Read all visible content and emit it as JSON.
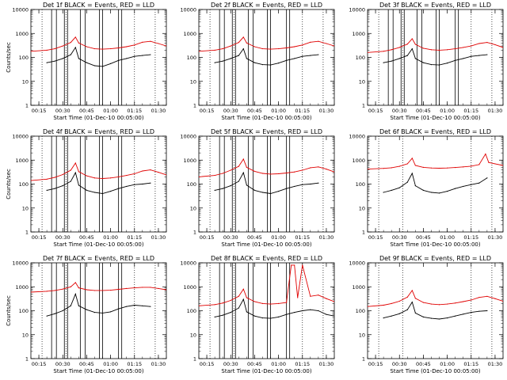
{
  "colors": {
    "events": "#000000",
    "lld": "#e00000",
    "background": "#ffffff"
  },
  "chart_data": [
    {
      "type": "line",
      "title": "Det 1f BLACK = Events, RED = LLD",
      "xlabel": "Start Time (01-Dec-10 00:05:00)",
      "ylabel": "Counts/sec",
      "x_ticks": [
        "00:15",
        "00:30",
        "00:45",
        "01:00",
        "01:15",
        "01:30"
      ],
      "y_ticks": [
        "1",
        "10",
        "100",
        "1000",
        "10000"
      ],
      "xlim_min": [
        10,
        95
      ],
      "ylim": [
        1,
        10000
      ],
      "yscale": "log",
      "series": [
        {
          "name": "Events",
          "color": "#000000",
          "x": [
            20,
            25,
            30,
            35,
            38,
            40,
            45,
            50,
            55,
            60,
            65,
            70,
            75,
            80,
            85
          ],
          "y": [
            60,
            70,
            90,
            130,
            260,
            90,
            60,
            45,
            42,
            55,
            75,
            90,
            110,
            120,
            130
          ]
        },
        {
          "name": "LLD",
          "color": "#e00000",
          "x": [
            10,
            20,
            25,
            30,
            35,
            38,
            40,
            45,
            50,
            55,
            60,
            65,
            70,
            75,
            80,
            85,
            90,
            95
          ],
          "y": [
            180,
            200,
            230,
            300,
            420,
            700,
            400,
            280,
            230,
            220,
            230,
            250,
            280,
            330,
            430,
            470,
            380,
            300
          ]
        }
      ],
      "vertical_lines": {
        "dotted": [
          17,
          32,
          75,
          88
        ],
        "solid": [
          23,
          26,
          31,
          33,
          41,
          44,
          53,
          55,
          65,
          67
        ]
      },
      "grid": false
    },
    {
      "type": "line",
      "title": "Det 2f BLACK = Events, RED = LLD",
      "xlabel": "Start Time (01-Dec-10 00:05:00)",
      "ylabel": "",
      "x_ticks": [
        "00:15",
        "00:30",
        "00:45",
        "01:00",
        "01:15",
        "01:30"
      ],
      "y_ticks": [
        "1",
        "10",
        "100",
        "1000",
        "10000"
      ],
      "xlim_min": [
        10,
        95
      ],
      "ylim": [
        1,
        10000
      ],
      "yscale": "log",
      "series": [
        {
          "name": "Events",
          "color": "#000000",
          "x": [
            20,
            25,
            30,
            35,
            38,
            40,
            45,
            50,
            55,
            60,
            65,
            70,
            75,
            80,
            85
          ],
          "y": [
            60,
            70,
            90,
            120,
            230,
            90,
            60,
            50,
            48,
            58,
            75,
            90,
            110,
            120,
            130
          ]
        },
        {
          "name": "LLD",
          "color": "#e00000",
          "x": [
            10,
            20,
            25,
            30,
            35,
            38,
            40,
            45,
            50,
            55,
            60,
            65,
            70,
            75,
            80,
            85,
            90,
            95
          ],
          "y": [
            180,
            200,
            230,
            300,
            420,
            700,
            400,
            280,
            230,
            220,
            230,
            250,
            280,
            330,
            430,
            470,
            380,
            300
          ]
        }
      ],
      "vertical_lines": {
        "dotted": [
          17,
          32,
          75,
          88
        ],
        "solid": [
          23,
          26,
          31,
          33,
          41,
          44,
          53,
          55,
          65,
          67
        ]
      },
      "grid": false
    },
    {
      "type": "line",
      "title": "Det 3f BLACK = Events, RED = LLD",
      "xlabel": "Start Time (01-Dec-10 00:05:00)",
      "ylabel": "",
      "x_ticks": [
        "00:15",
        "00:30",
        "00:45",
        "01:00",
        "01:15",
        "01:30"
      ],
      "y_ticks": [
        "1",
        "10",
        "100",
        "1000",
        "10000"
      ],
      "xlim_min": [
        10,
        95
      ],
      "ylim": [
        1,
        10000
      ],
      "yscale": "log",
      "series": [
        {
          "name": "Events",
          "color": "#000000",
          "x": [
            20,
            25,
            30,
            35,
            38,
            40,
            45,
            50,
            55,
            60,
            65,
            70,
            75,
            80,
            85
          ],
          "y": [
            60,
            70,
            90,
            120,
            230,
            90,
            60,
            50,
            48,
            58,
            75,
            90,
            110,
            120,
            130
          ]
        },
        {
          "name": "LLD",
          "color": "#e00000",
          "x": [
            10,
            20,
            25,
            30,
            35,
            38,
            40,
            45,
            50,
            55,
            60,
            65,
            70,
            75,
            80,
            85,
            90,
            95
          ],
          "y": [
            160,
            180,
            210,
            260,
            360,
            600,
            350,
            240,
            210,
            200,
            210,
            230,
            260,
            300,
            380,
            420,
            340,
            260
          ]
        }
      ],
      "vertical_lines": {
        "dotted": [
          17,
          32,
          75,
          88
        ],
        "solid": [
          23,
          26,
          31,
          33,
          41,
          44,
          53,
          55,
          65,
          67
        ]
      },
      "grid": false
    },
    {
      "type": "line",
      "title": "Det 4f BLACK = Events, RED = LLD",
      "xlabel": "Start Time (01-Dec-10 00:05:00)",
      "ylabel": "Counts/sec",
      "x_ticks": [
        "00:15",
        "00:30",
        "00:45",
        "01:00",
        "01:15",
        "01:30"
      ],
      "y_ticks": [
        "1",
        "10",
        "100",
        "1000",
        "10000"
      ],
      "xlim_min": [
        10,
        95
      ],
      "ylim": [
        1,
        10000
      ],
      "yscale": "log",
      "series": [
        {
          "name": "Events",
          "color": "#000000",
          "x": [
            20,
            25,
            30,
            35,
            38,
            40,
            45,
            50,
            55,
            60,
            65,
            70,
            75,
            80,
            85
          ],
          "y": [
            55,
            65,
            85,
            130,
            300,
            90,
            55,
            45,
            40,
            50,
            65,
            80,
            95,
            100,
            110
          ]
        },
        {
          "name": "LLD",
          "color": "#e00000",
          "x": [
            10,
            20,
            25,
            30,
            35,
            38,
            40,
            45,
            50,
            55,
            60,
            65,
            70,
            75,
            80,
            85,
            90,
            95
          ],
          "y": [
            140,
            160,
            190,
            250,
            380,
            750,
            330,
            220,
            180,
            170,
            180,
            200,
            230,
            270,
            350,
            390,
            310,
            240
          ]
        }
      ],
      "vertical_lines": {
        "dotted": [
          17,
          32,
          75,
          88
        ],
        "solid": [
          23,
          26,
          31,
          33,
          41,
          44,
          53,
          55,
          65,
          67
        ]
      },
      "grid": false
    },
    {
      "type": "line",
      "title": "Det 5f BLACK = Events, RED = LLD",
      "xlabel": "Start Time (01-Dec-10 00:05:00)",
      "ylabel": "",
      "x_ticks": [
        "00:15",
        "00:30",
        "00:45",
        "01:00",
        "01:15",
        "01:30"
      ],
      "y_ticks": [
        "1",
        "10",
        "100",
        "1000",
        "10000"
      ],
      "xlim_min": [
        10,
        95
      ],
      "ylim": [
        1,
        10000
      ],
      "yscale": "log",
      "series": [
        {
          "name": "Events",
          "color": "#000000",
          "x": [
            20,
            25,
            30,
            35,
            38,
            40,
            45,
            50,
            55,
            60,
            65,
            70,
            75,
            80,
            85
          ],
          "y": [
            55,
            65,
            85,
            130,
            300,
            90,
            55,
            45,
            40,
            50,
            65,
            80,
            95,
            100,
            110
          ]
        },
        {
          "name": "LLD",
          "color": "#e00000",
          "x": [
            10,
            20,
            25,
            30,
            35,
            38,
            40,
            45,
            50,
            55,
            60,
            65,
            70,
            75,
            80,
            85,
            90,
            95
          ],
          "y": [
            200,
            230,
            280,
            380,
            550,
            1100,
            500,
            340,
            280,
            260,
            270,
            290,
            320,
            380,
            480,
            520,
            420,
            320
          ]
        }
      ],
      "vertical_lines": {
        "dotted": [
          17,
          32,
          75,
          88
        ],
        "solid": [
          23,
          26,
          31,
          33,
          41,
          44,
          53,
          55,
          65,
          67
        ]
      },
      "grid": false
    },
    {
      "type": "line",
      "title": "Det 6f BLACK = Events, RED = LLD",
      "xlabel": "Start Time (01-Dec-10 00:05:00)",
      "ylabel": "",
      "x_ticks": [
        "00:15",
        "00:30",
        "00:45",
        "01:00",
        "01:15",
        "01:30"
      ],
      "y_ticks": [
        "1",
        "10",
        "100",
        "1000",
        "10000"
      ],
      "xlim_min": [
        10,
        95
      ],
      "ylim": [
        1,
        10000
      ],
      "yscale": "log",
      "series": [
        {
          "name": "Events",
          "color": "#000000",
          "x": [
            20,
            25,
            30,
            35,
            38,
            40,
            45,
            50,
            55,
            60,
            65,
            70,
            75,
            80,
            85
          ],
          "y": [
            45,
            55,
            70,
            120,
            280,
            85,
            55,
            45,
            42,
            50,
            65,
            80,
            95,
            110,
            180
          ]
        },
        {
          "name": "LLD",
          "color": "#e00000",
          "x": [
            10,
            20,
            25,
            30,
            35,
            38,
            40,
            45,
            50,
            55,
            60,
            65,
            70,
            75,
            80,
            84,
            86,
            90,
            95
          ],
          "y": [
            420,
            450,
            480,
            550,
            700,
            1200,
            600,
            500,
            470,
            460,
            470,
            490,
            520,
            560,
            650,
            1800,
            800,
            700,
            600
          ]
        }
      ],
      "vertical_lines": {
        "dotted": [
          17,
          32,
          75,
          88
        ],
        "solid": []
      },
      "grid": false
    },
    {
      "type": "line",
      "title": "Det 7f BLACK = Events, RED = LLD",
      "xlabel": "Start Time (01-Dec-10 00:05:00)",
      "ylabel": "Counts/sec",
      "x_ticks": [
        "00:15",
        "00:30",
        "00:45",
        "01:00",
        "01:15",
        "01:30"
      ],
      "y_ticks": [
        "1",
        "10",
        "100",
        "1000",
        "10000"
      ],
      "xlim_min": [
        10,
        95
      ],
      "ylim": [
        1,
        10000
      ],
      "yscale": "log",
      "series": [
        {
          "name": "Events",
          "color": "#000000",
          "x": [
            20,
            25,
            30,
            35,
            38,
            40,
            45,
            50,
            55,
            60,
            65,
            70,
            75,
            80,
            85
          ],
          "y": [
            60,
            75,
            100,
            160,
            500,
            160,
            110,
            85,
            80,
            90,
            120,
            150,
            170,
            160,
            150
          ]
        },
        {
          "name": "LLD",
          "color": "#e00000",
          "x": [
            10,
            20,
            25,
            30,
            35,
            38,
            40,
            45,
            50,
            55,
            60,
            65,
            70,
            75,
            80,
            85,
            90,
            95
          ],
          "y": [
            600,
            650,
            700,
            800,
            1000,
            1500,
            900,
            750,
            700,
            700,
            720,
            780,
            850,
            900,
            950,
            950,
            850,
            750
          ]
        }
      ],
      "vertical_lines": {
        "dotted": [
          17,
          32,
          75,
          88
        ],
        "solid": [
          23,
          26,
          31,
          33,
          41,
          44,
          53,
          55,
          65,
          67
        ]
      },
      "grid": false
    },
    {
      "type": "line",
      "title": "Det 8f BLACK = Events, RED = LLD",
      "xlabel": "Start Time (01-Dec-10 00:05:00)",
      "ylabel": "",
      "x_ticks": [
        "00:15",
        "00:30",
        "00:45",
        "01:00",
        "01:15",
        "01:30"
      ],
      "y_ticks": [
        "1",
        "10",
        "100",
        "1000",
        "10000"
      ],
      "xlim_min": [
        10,
        95
      ],
      "ylim": [
        1,
        10000
      ],
      "yscale": "log",
      "series": [
        {
          "name": "Events",
          "color": "#000000",
          "x": [
            20,
            25,
            30,
            35,
            38,
            40,
            45,
            50,
            55,
            60,
            65,
            70,
            75,
            80,
            85,
            90,
            95
          ],
          "y": [
            55,
            65,
            85,
            130,
            300,
            90,
            60,
            50,
            48,
            55,
            70,
            85,
            100,
            110,
            100,
            70,
            60
          ]
        },
        {
          "name": "LLD",
          "color": "#e00000",
          "x": [
            10,
            20,
            25,
            30,
            35,
            38,
            40,
            45,
            50,
            55,
            60,
            65,
            68,
            70,
            72,
            75,
            80,
            85,
            90,
            95
          ],
          "y": [
            160,
            180,
            210,
            270,
            400,
            800,
            350,
            240,
            200,
            190,
            200,
            220,
            8000,
            8000,
            350,
            8000,
            400,
            450,
            320,
            240
          ]
        }
      ],
      "vertical_lines": {
        "dotted": [
          17,
          32,
          75,
          88
        ],
        "solid": [
          23,
          26,
          31,
          33,
          41,
          44,
          53,
          55,
          65,
          67
        ]
      },
      "grid": false
    },
    {
      "type": "line",
      "title": "Det 9f BLACK = Events, RED = LLD",
      "xlabel": "Start Time (01-Dec-10 00:05:00)",
      "ylabel": "",
      "x_ticks": [
        "00:15",
        "00:30",
        "00:45",
        "01:00",
        "01:15",
        "01:30"
      ],
      "y_ticks": [
        "1",
        "10",
        "100",
        "1000",
        "10000"
      ],
      "xlim_min": [
        10,
        95
      ],
      "ylim": [
        1,
        10000
      ],
      "yscale": "log",
      "series": [
        {
          "name": "Events",
          "color": "#000000",
          "x": [
            20,
            25,
            30,
            35,
            38,
            40,
            45,
            50,
            55,
            60,
            65,
            70,
            75,
            80,
            85
          ],
          "y": [
            50,
            60,
            75,
            110,
            230,
            80,
            55,
            48,
            45,
            50,
            60,
            72,
            85,
            95,
            100
          ]
        },
        {
          "name": "LLD",
          "color": "#e00000",
          "x": [
            10,
            20,
            25,
            30,
            35,
            38,
            40,
            45,
            50,
            55,
            60,
            65,
            70,
            75,
            80,
            85,
            90,
            95
          ],
          "y": [
            150,
            170,
            200,
            250,
            370,
            700,
            330,
            220,
            190,
            180,
            190,
            210,
            240,
            280,
            360,
            400,
            320,
            250
          ]
        }
      ],
      "vertical_lines": {
        "dotted": [
          17,
          32,
          75,
          88
        ],
        "solid": []
      },
      "grid": false
    }
  ]
}
